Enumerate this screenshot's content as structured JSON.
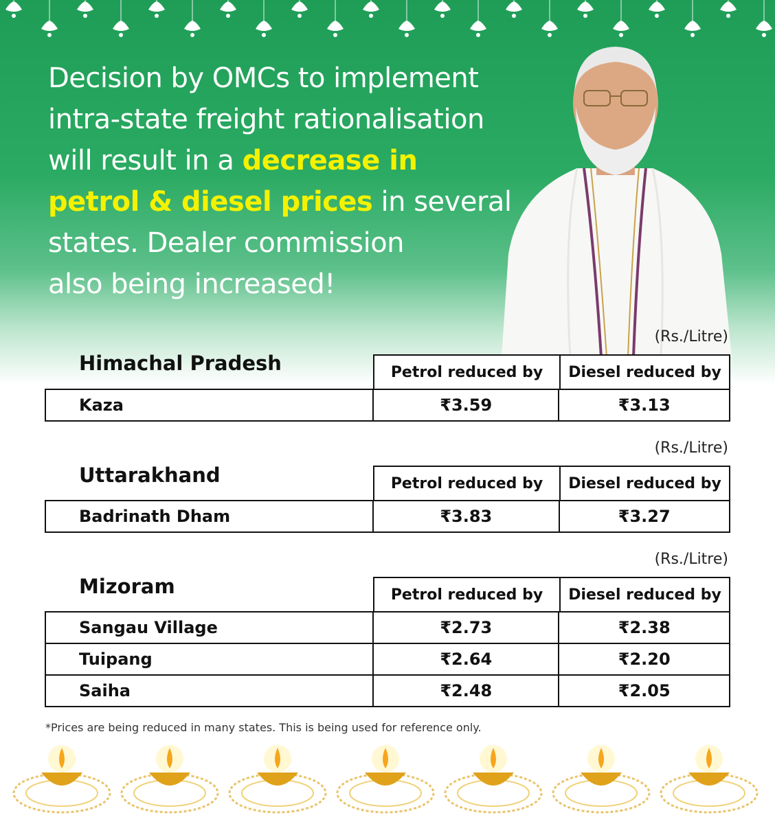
{
  "headline": {
    "line1": "Decision by OMCs to implement",
    "line2": "intra-state freight rationalisation",
    "line3_plain": "will result in a ",
    "line3_highlight": "decrease in",
    "line4_highlight": "petrol & diesel prices",
    "line4_plain": " in several",
    "line5": "states. Dealer commission",
    "line6": "also being increased!"
  },
  "unit_label": "(Rs./Litre)",
  "column_headers": {
    "petrol": "Petrol reduced by",
    "diesel": "Diesel reduced by"
  },
  "tables": [
    {
      "state": "Himachal Pradesh",
      "rows": [
        {
          "location": "Kaza",
          "petrol": "₹3.59",
          "diesel": "₹3.13"
        }
      ]
    },
    {
      "state": "Uttarakhand",
      "rows": [
        {
          "location": "Badrinath Dham",
          "petrol": "₹3.83",
          "diesel": "₹3.27"
        }
      ]
    },
    {
      "state": "Mizoram",
      "rows": [
        {
          "location": "Sangau Village",
          "petrol": "₹2.73",
          "diesel": "₹2.38"
        },
        {
          "location": "Tuipang",
          "petrol": "₹2.64",
          "diesel": "₹2.20"
        },
        {
          "location": "Saiha",
          "petrol": "₹2.48",
          "diesel": "₹2.05"
        }
      ]
    }
  ],
  "footnote": "*Prices are being reduced in many states. This is being used for reference only.",
  "colors": {
    "green": "#1f9d57",
    "highlight": "#f4f200",
    "gold": "#e0a21b"
  }
}
